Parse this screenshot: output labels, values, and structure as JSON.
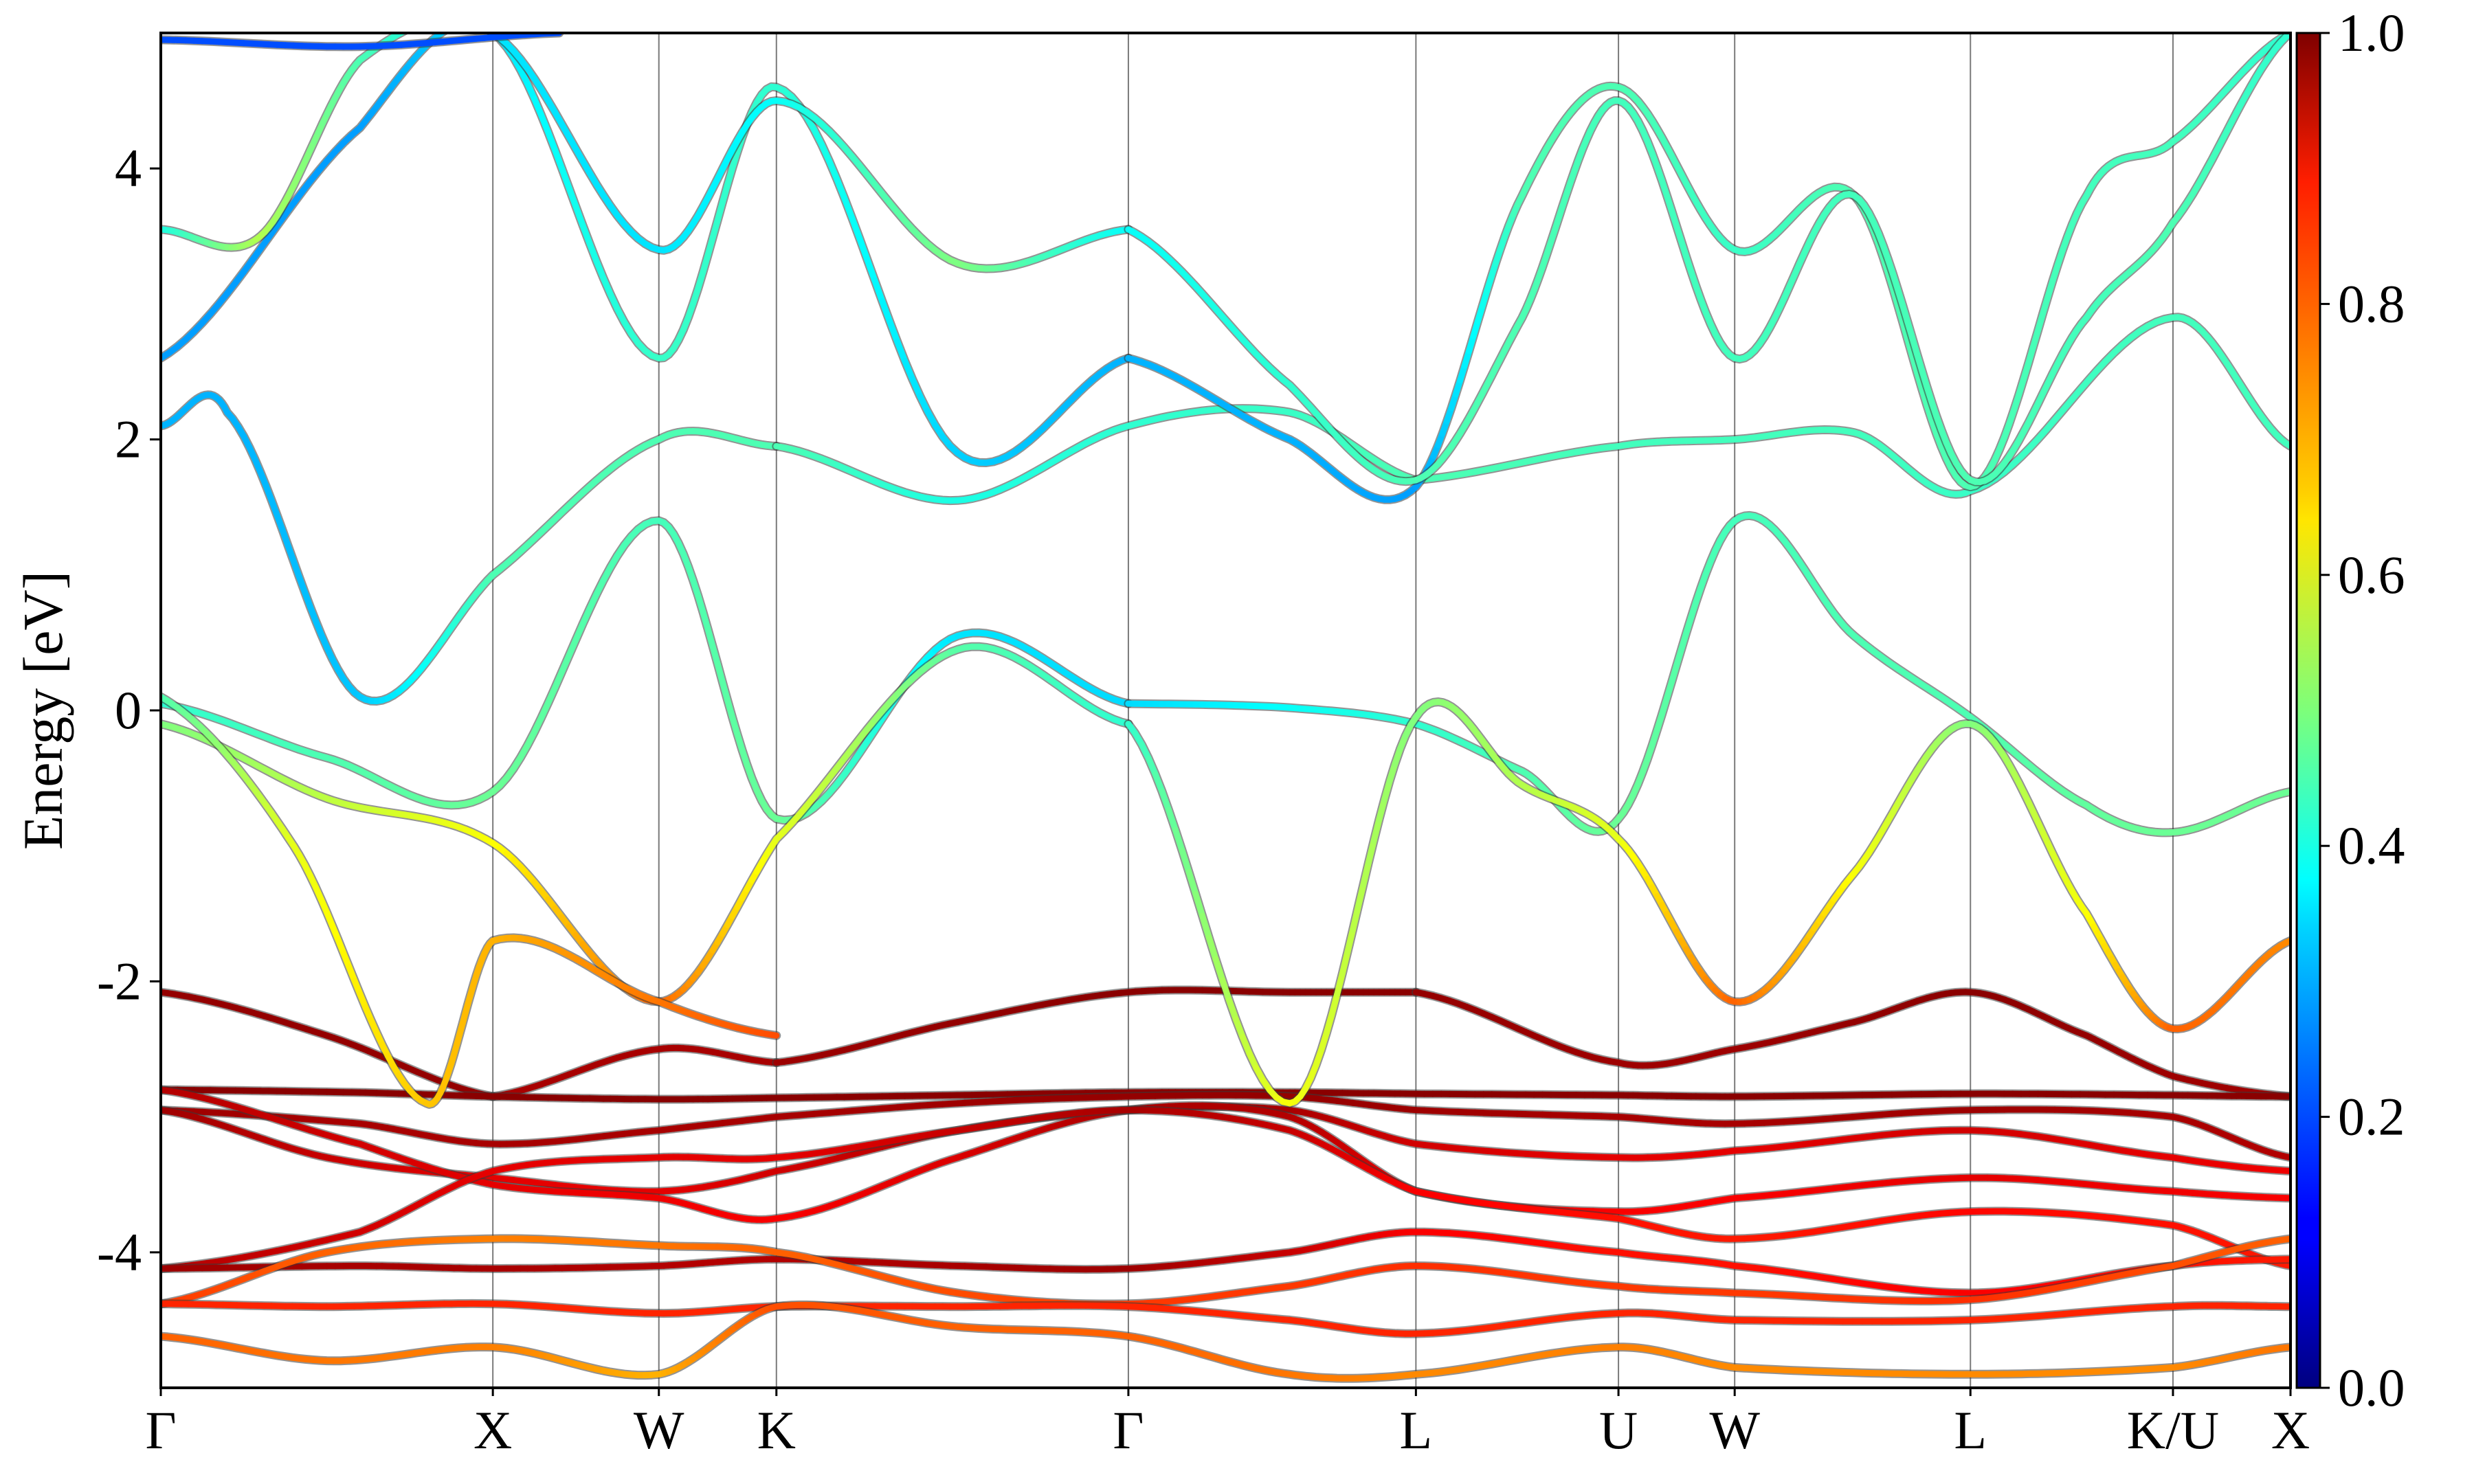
{
  "chart_data": {
    "type": "line",
    "subtype": "band-structure-colored-by-weight",
    "title": "",
    "xlabel": "",
    "ylabel": "Energy [eV]",
    "ylim": [
      -5,
      5
    ],
    "yticks": [
      4,
      2,
      0,
      -2,
      -4
    ],
    "ytick_labels": [
      "4",
      "2",
      "0",
      "-2",
      "-4"
    ],
    "high_symmetry_points": [
      {
        "label": "Γ",
        "k": 0.0
      },
      {
        "label": "X",
        "k": 1.0
      },
      {
        "label": "W",
        "k": 1.5
      },
      {
        "label": "K",
        "k": 1.854
      },
      {
        "label": "Γ",
        "k": 2.914
      },
      {
        "label": "L",
        "k": 3.78
      },
      {
        "label": "U",
        "k": 4.39
      },
      {
        "label": "W",
        "k": 4.74
      },
      {
        "label": "L",
        "k": 5.45
      },
      {
        "label": "K/U",
        "k": 6.06
      },
      {
        "label": "X",
        "k": 6.414
      }
    ],
    "colorbar": {
      "range": [
        0.0,
        1.0
      ],
      "ticks": [
        0.0,
        0.2,
        0.4,
        0.6,
        0.8,
        1.0
      ],
      "tick_labels": [
        "0.0",
        "0.2",
        "0.4",
        "0.6",
        "0.8",
        "1.0"
      ],
      "colormap": "jet"
    },
    "series": [
      {
        "k": [
          0,
          0.5,
          1.0
        ],
        "energy": [
          -2.08,
          -2.4,
          -2.85
        ],
        "weight": [
          0.98,
          0.98,
          0.98
        ]
      },
      {
        "k": [
          1.0,
          1.5,
          1.854
        ],
        "energy": [
          -2.85,
          -2.5,
          -2.6
        ],
        "weight": [
          0.96,
          0.96,
          0.96
        ]
      },
      {
        "k": [
          1.854,
          2.4,
          2.914,
          3.4,
          3.78
        ],
        "energy": [
          -2.6,
          -2.3,
          -2.08,
          -2.08,
          -2.08
        ],
        "weight": [
          0.97,
          0.98,
          0.99,
          0.99,
          0.99
        ]
      },
      {
        "k": [
          3.78,
          4.39,
          4.74,
          5.1,
          5.45,
          5.8,
          6.06,
          6.414
        ],
        "energy": [
          -2.08,
          -2.6,
          -2.5,
          -2.3,
          -2.08,
          -2.4,
          -2.7,
          -2.85
        ],
        "weight": [
          0.98,
          0.97,
          0.97,
          0.98,
          0.99,
          0.98,
          0.97,
          0.97
        ]
      },
      {
        "k": [
          0,
          0.6,
          1.0,
          1.5,
          1.854,
          2.4,
          2.914,
          3.4,
          3.78,
          4.39,
          4.74,
          5.45,
          6.06,
          6.414
        ],
        "energy": [
          -2.8,
          -2.82,
          -2.85,
          -2.87,
          -2.86,
          -2.84,
          -2.82,
          -2.82,
          -2.83,
          -2.84,
          -2.85,
          -2.83,
          -2.84,
          -2.85
        ],
        "weight": [
          0.99,
          0.99,
          0.99,
          0.99,
          0.99,
          0.99,
          0.99,
          0.99,
          0.99,
          0.99,
          0.99,
          0.99,
          0.99,
          0.99
        ]
      },
      {
        "k": [
          0,
          0.6,
          1.0,
          1.5,
          1.854,
          2.4,
          2.914,
          3.4,
          3.78,
          4.39,
          4.74,
          5.45,
          6.06,
          6.414
        ],
        "energy": [
          -2.95,
          -3.05,
          -3.2,
          -3.1,
          -3.0,
          -2.9,
          -2.85,
          -2.85,
          -2.95,
          -3.0,
          -3.05,
          -2.95,
          -3.0,
          -3.3
        ],
        "weight": [
          0.97,
          0.96,
          0.96,
          0.96,
          0.96,
          0.97,
          0.98,
          0.98,
          0.97,
          0.96,
          0.96,
          0.97,
          0.96,
          0.95
        ]
      },
      {
        "k": [
          0,
          0.5,
          1.0,
          1.5,
          1.854,
          2.4,
          2.914,
          3.4,
          3.78,
          4.39,
          4.74,
          5.45,
          6.06,
          6.414
        ],
        "energy": [
          -2.95,
          -3.3,
          -3.45,
          -3.55,
          -3.4,
          -3.1,
          -2.95,
          -2.95,
          -3.2,
          -3.3,
          -3.25,
          -3.1,
          -3.3,
          -3.4
        ],
        "weight": [
          0.97,
          0.93,
          0.9,
          0.9,
          0.92,
          0.95,
          0.97,
          0.96,
          0.92,
          0.9,
          0.9,
          0.92,
          0.9,
          0.89
        ]
      },
      {
        "k": [
          0,
          0.6,
          1.0,
          1.5,
          1.854,
          2.4,
          2.914,
          3.4,
          3.78,
          4.39,
          4.74,
          5.45,
          6.06,
          6.414
        ],
        "energy": [
          -2.8,
          -3.2,
          -3.5,
          -3.6,
          -3.75,
          -3.3,
          -2.95,
          -3.0,
          -3.55,
          -3.7,
          -3.6,
          -3.45,
          -3.55,
          -3.6
        ],
        "weight": [
          0.95,
          0.92,
          0.9,
          0.89,
          0.88,
          0.91,
          0.96,
          0.95,
          0.9,
          0.88,
          0.88,
          0.9,
          0.89,
          0.88
        ]
      },
      {
        "k": [
          0,
          0.6,
          1.0,
          1.5,
          1.854,
          2.4,
          2.914,
          3.4,
          3.78,
          4.39,
          4.74,
          5.45,
          6.06,
          6.414
        ],
        "energy": [
          -4.12,
          -3.85,
          -3.4,
          -3.3,
          -3.3,
          -3.1,
          -2.95,
          -3.1,
          -3.55,
          -3.75,
          -3.9,
          -3.7,
          -3.8,
          -4.1
        ],
        "weight": [
          0.95,
          0.92,
          0.9,
          0.9,
          0.9,
          0.93,
          0.96,
          0.93,
          0.88,
          0.86,
          0.85,
          0.87,
          0.86,
          0.85
        ]
      },
      {
        "k": [
          0,
          0.6,
          1.0,
          1.5,
          1.854,
          2.4,
          2.914,
          3.4,
          3.78,
          4.39,
          4.74,
          5.45,
          6.06,
          6.414
        ],
        "energy": [
          -4.12,
          -4.1,
          -4.12,
          -4.1,
          -4.05,
          -4.1,
          -4.12,
          -4.0,
          -3.85,
          -4.0,
          -4.1,
          -4.3,
          -4.1,
          -4.05
        ],
        "weight": [
          0.97,
          0.96,
          0.96,
          0.95,
          0.95,
          0.96,
          0.97,
          0.93,
          0.88,
          0.86,
          0.86,
          0.88,
          0.86,
          0.85
        ]
      },
      {
        "k": [
          0,
          0.5,
          1.0,
          1.5,
          1.854,
          2.4,
          2.914,
          3.4,
          3.78,
          4.39,
          4.74,
          5.45,
          6.06,
          6.414
        ],
        "energy": [
          -4.38,
          -4.0,
          -3.9,
          -3.95,
          -4.0,
          -4.3,
          -4.38,
          -4.25,
          -4.1,
          -4.25,
          -4.3,
          -4.35,
          -4.1,
          -3.9
        ],
        "weight": [
          0.82,
          0.78,
          0.75,
          0.76,
          0.78,
          0.8,
          0.82,
          0.82,
          0.83,
          0.82,
          0.82,
          0.83,
          0.8,
          0.78
        ]
      },
      {
        "k": [
          0,
          0.5,
          1.0,
          1.5,
          1.854,
          2.4,
          2.914,
          3.4,
          3.78,
          4.39,
          4.74,
          5.45,
          6.06,
          6.414
        ],
        "energy": [
          -4.38,
          -4.4,
          -4.38,
          -4.45,
          -4.4,
          -4.4,
          -4.4,
          -4.5,
          -4.6,
          -4.45,
          -4.5,
          -4.5,
          -4.4,
          -4.4
        ],
        "weight": [
          0.84,
          0.84,
          0.84,
          0.84,
          0.84,
          0.84,
          0.84,
          0.84,
          0.84,
          0.84,
          0.84,
          0.84,
          0.84,
          0.84
        ]
      },
      {
        "k": [
          0,
          0.5,
          1.0,
          1.5,
          1.854,
          2.4,
          2.914,
          3.4,
          3.78,
          4.39,
          4.74,
          5.45,
          6.06,
          6.414
        ],
        "energy": [
          -4.62,
          -4.8,
          -4.7,
          -4.9,
          -4.4,
          -4.55,
          -4.62,
          -4.9,
          -4.9,
          -4.7,
          -4.85,
          -4.9,
          -4.85,
          -4.7
        ],
        "weight": [
          0.78,
          0.76,
          0.75,
          0.7,
          0.8,
          0.78,
          0.78,
          0.76,
          0.74,
          0.75,
          0.74,
          0.74,
          0.74,
          0.76
        ]
      },
      {
        "k": [
          0,
          0.5,
          1.0,
          1.5,
          1.854,
          2.4,
          2.914
        ],
        "energy": [
          0.05,
          -0.35,
          -0.6,
          1.4,
          -0.8,
          0.55,
          0.05
        ],
        "weight": [
          0.42,
          0.45,
          0.48,
          0.44,
          0.48,
          0.35,
          0.34
        ]
      },
      {
        "k": [
          2.914,
          3.4,
          3.78,
          4.1,
          4.39,
          4.74,
          5.1,
          5.45,
          5.8,
          6.06,
          6.414
        ],
        "energy": [
          0.05,
          0.02,
          -0.1,
          -0.45,
          -0.8,
          1.4,
          0.55,
          -0.05,
          -0.7,
          -0.9,
          -0.6
        ],
        "weight": [
          0.34,
          0.38,
          0.42,
          0.45,
          0.48,
          0.44,
          0.45,
          0.45,
          0.47,
          0.48,
          0.48
        ]
      },
      {
        "k": [
          0,
          0.5,
          1.0,
          1.5,
          1.854,
          2.4,
          2.914
        ],
        "energy": [
          -0.1,
          -0.65,
          -0.98,
          -2.15,
          -0.95,
          0.45,
          -0.1
        ],
        "weight": [
          0.5,
          0.56,
          0.62,
          0.78,
          0.6,
          0.46,
          0.42
        ]
      },
      {
        "k": [
          2.914,
          3.4,
          3.78,
          4.1,
          4.39,
          4.74,
          5.1,
          5.45,
          5.8,
          6.06,
          6.414
        ],
        "energy": [
          -0.1,
          -2.9,
          -0.05,
          -0.55,
          -0.95,
          -2.15,
          -1.2,
          -0.1,
          -1.5,
          -2.35,
          -1.7
        ],
        "weight": [
          0.42,
          0.62,
          0.5,
          0.55,
          0.6,
          0.78,
          0.62,
          0.5,
          0.62,
          0.78,
          0.74
        ]
      },
      {
        "k": [
          0,
          0.4,
          0.8,
          1.0,
          1.5,
          1.854
        ],
        "energy": [
          0.1,
          -1.0,
          -2.9,
          -1.7,
          -2.15,
          -2.4
        ],
        "weight": [
          0.45,
          0.6,
          0.68,
          0.7,
          0.76,
          0.8
        ]
      },
      {
        "k": [
          0,
          0.2,
          0.6,
          1.0,
          1.5,
          1.854
        ],
        "energy": [
          2.1,
          2.2,
          0.1,
          1.0,
          2.0,
          1.95
        ],
        "weight": [
          0.3,
          0.3,
          0.32,
          0.45,
          0.45,
          0.45
        ]
      },
      {
        "k": [
          1.854,
          2.4,
          2.914,
          3.4,
          3.78
        ],
        "energy": [
          1.95,
          1.55,
          2.1,
          2.2,
          1.7
        ],
        "weight": [
          0.45,
          0.4,
          0.42,
          0.43,
          0.45
        ]
      },
      {
        "k": [
          3.78,
          4.39,
          4.74,
          5.1,
          5.45,
          6.06,
          6.414
        ],
        "energy": [
          1.7,
          1.95,
          2.0,
          2.05,
          1.62,
          2.9,
          1.95
        ],
        "weight": [
          0.45,
          0.44,
          0.44,
          0.44,
          0.43,
          0.44,
          0.44
        ]
      },
      {
        "k": [
          0,
          0.6,
          1.0,
          1.5,
          1.854,
          2.4,
          2.914
        ],
        "energy": [
          2.6,
          4.3,
          5.0,
          2.6,
          4.6,
          1.9,
          2.6
        ],
        "weight": [
          0.28,
          0.28,
          0.35,
          0.43,
          0.42,
          0.33,
          0.3
        ]
      },
      {
        "k": [
          2.914,
          3.4,
          3.78,
          4.1,
          4.39,
          4.74,
          5.1,
          5.45,
          5.8,
          6.06,
          6.414
        ],
        "energy": [
          2.6,
          2.0,
          1.65,
          3.8,
          4.6,
          3.4,
          3.8,
          1.65,
          3.8,
          4.2,
          5.0
        ],
        "weight": [
          0.3,
          0.3,
          0.28,
          0.45,
          0.45,
          0.43,
          0.45,
          0.45,
          0.44,
          0.44,
          0.42
        ]
      },
      {
        "k": [
          0,
          0.3,
          0.6,
          1.0,
          1.5,
          1.854,
          2.4,
          2.914
        ],
        "energy": [
          3.55,
          3.5,
          4.8,
          5.0,
          3.4,
          4.5,
          3.3,
          3.55
        ],
        "weight": [
          0.4,
          0.55,
          0.45,
          0.35,
          0.35,
          0.38,
          0.5,
          0.38
        ]
      },
      {
        "k": [
          2.914,
          3.4,
          3.78,
          4.1,
          4.39,
          4.74,
          5.1,
          5.45,
          5.8,
          6.06,
          6.414
        ],
        "energy": [
          3.55,
          2.4,
          1.7,
          2.9,
          4.5,
          2.6,
          3.8,
          1.7,
          2.9,
          3.6,
          5.0
        ],
        "weight": [
          0.38,
          0.42,
          0.45,
          0.45,
          0.44,
          0.44,
          0.44,
          0.45,
          0.44,
          0.45,
          0.42
        ]
      },
      {
        "k": [
          0,
          0.6,
          1.2
        ],
        "energy": [
          4.95,
          4.9,
          5.0
        ],
        "weight": [
          0.2,
          0.2,
          0.2
        ]
      }
    ]
  }
}
